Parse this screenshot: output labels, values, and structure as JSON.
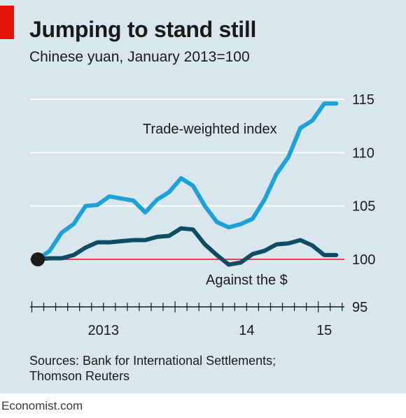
{
  "title": "Jumping to stand still",
  "subtitle": "Chinese yuan, January 2013=100",
  "source_lines": [
    "Sources: Bank for International Settlements;",
    "Thomson Reuters"
  ],
  "brand": "Economist.com",
  "colors": {
    "background": "#d9e6ee",
    "trade_weighted": "#1da1d9",
    "against_dollar": "#0d4c63",
    "baseline": "#e3120b",
    "accent": "#e3120b"
  },
  "chart_data": {
    "type": "line",
    "title": "Jumping to stand still",
    "subtitle": "Chinese yuan, January 2013=100",
    "x_tick_labels": [
      "2013",
      "14",
      "15"
    ],
    "y_ticks": [
      95,
      100,
      105,
      110,
      115
    ],
    "ylim": [
      95,
      115
    ],
    "grid": true,
    "y_axis_position": "right",
    "series": [
      {
        "name": "Trade-weighted index",
        "color": "#1da1d9",
        "x": [
          "2013-01",
          "2013-02",
          "2013-03",
          "2013-04",
          "2013-05",
          "2013-06",
          "2013-07",
          "2013-08",
          "2013-09",
          "2013-10",
          "2013-11",
          "2013-12",
          "2014-01",
          "2014-02",
          "2014-03",
          "2014-04",
          "2014-05",
          "2014-06",
          "2014-07",
          "2014-08",
          "2014-09",
          "2014-10",
          "2014-11",
          "2014-12",
          "2015-01",
          "2015-02"
        ],
        "values": [
          100,
          100.8,
          102.5,
          103.3,
          105.0,
          105.1,
          105.9,
          105.7,
          105.5,
          104.4,
          105.6,
          106.3,
          107.6,
          106.9,
          105.0,
          103.5,
          103.0,
          103.3,
          103.8,
          105.6,
          108.0,
          109.6,
          112.3,
          113.0,
          114.6,
          114.6
        ]
      },
      {
        "name": "Against the $",
        "color": "#0d4c63",
        "x": [
          "2013-01",
          "2013-02",
          "2013-03",
          "2013-04",
          "2013-05",
          "2013-06",
          "2013-07",
          "2013-08",
          "2013-09",
          "2013-10",
          "2013-11",
          "2013-12",
          "2014-01",
          "2014-02",
          "2014-03",
          "2014-04",
          "2014-05",
          "2014-06",
          "2014-07",
          "2014-08",
          "2014-09",
          "2014-10",
          "2014-11",
          "2014-12",
          "2015-01",
          "2015-02"
        ],
        "values": [
          100,
          100.1,
          100.1,
          100.4,
          101.1,
          101.6,
          101.6,
          101.7,
          101.8,
          101.8,
          102.1,
          102.2,
          102.9,
          102.8,
          101.4,
          100.4,
          99.5,
          99.7,
          100.5,
          100.8,
          101.4,
          101.5,
          101.8,
          101.3,
          100.4,
          100.4
        ]
      }
    ],
    "annotations": [
      "Trade-weighted index",
      "Against the $"
    ]
  }
}
